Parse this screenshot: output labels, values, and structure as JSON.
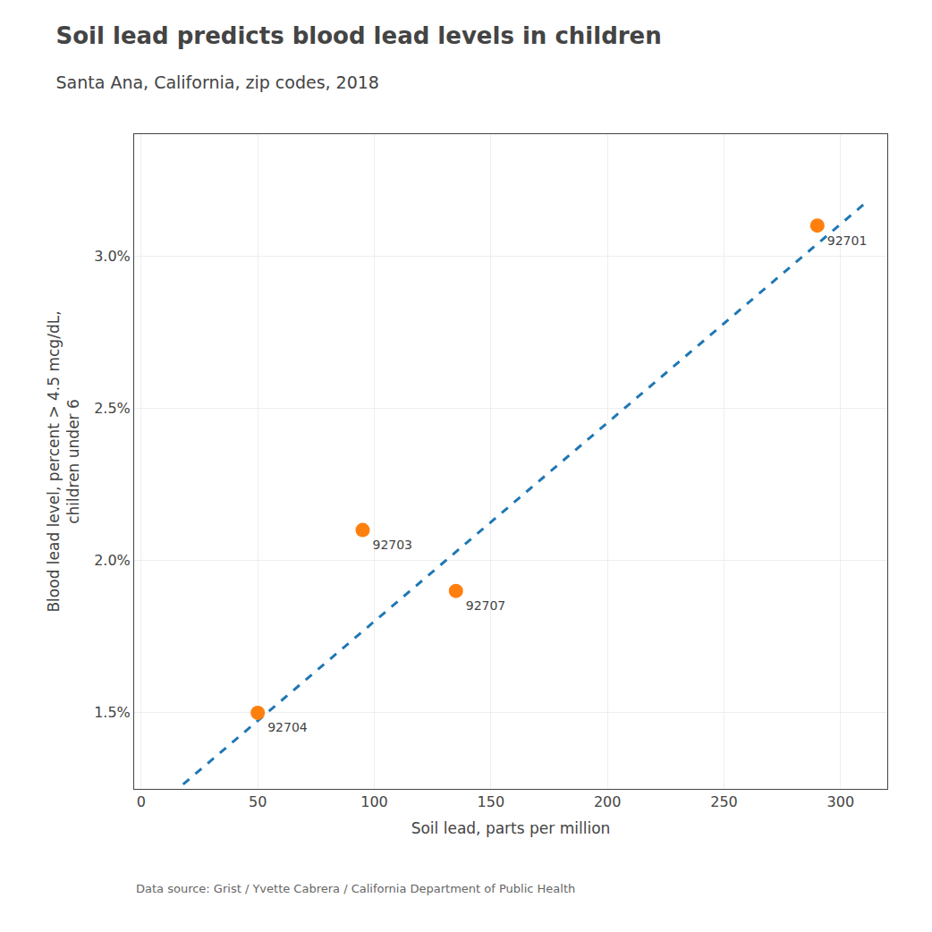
{
  "chart_data": {
    "type": "scatter",
    "title": "Soil lead predicts blood lead levels in children",
    "subtitle": "Santa Ana, California, zip codes, 2018",
    "xlabel": "Soil lead, parts per million",
    "ylabel": "Blood lead level, percent > 4.5 mcg/dL,\nchildren under 6",
    "caption": "Data source: Grist / Yvette Cabrera / California Department of Public Health",
    "series": [
      {
        "type": "scatter",
        "marker": "circle",
        "x": [
          50,
          95,
          135,
          290
        ],
        "values": [
          0.015,
          0.021,
          0.019,
          0.031
        ],
        "labels": [
          "92704",
          "92703",
          "92707",
          "92701"
        ]
      },
      {
        "type": "line",
        "line_style": "dashed",
        "x": [
          18,
          310
        ],
        "values": [
          0.01265,
          0.0317
        ]
      }
    ],
    "xlim": [
      -3,
      320
    ],
    "ylim": [
      0.0125,
      0.034
    ],
    "xticks": [
      0,
      50,
      100,
      150,
      200,
      250,
      300
    ],
    "yticks": [
      {
        "value": 0.015,
        "label": "1.5%"
      },
      {
        "value": 0.02,
        "label": "2.0%"
      },
      {
        "value": 0.025,
        "label": "2.5%"
      },
      {
        "value": 0.03,
        "label": "3.0%"
      }
    ],
    "grid": true
  }
}
